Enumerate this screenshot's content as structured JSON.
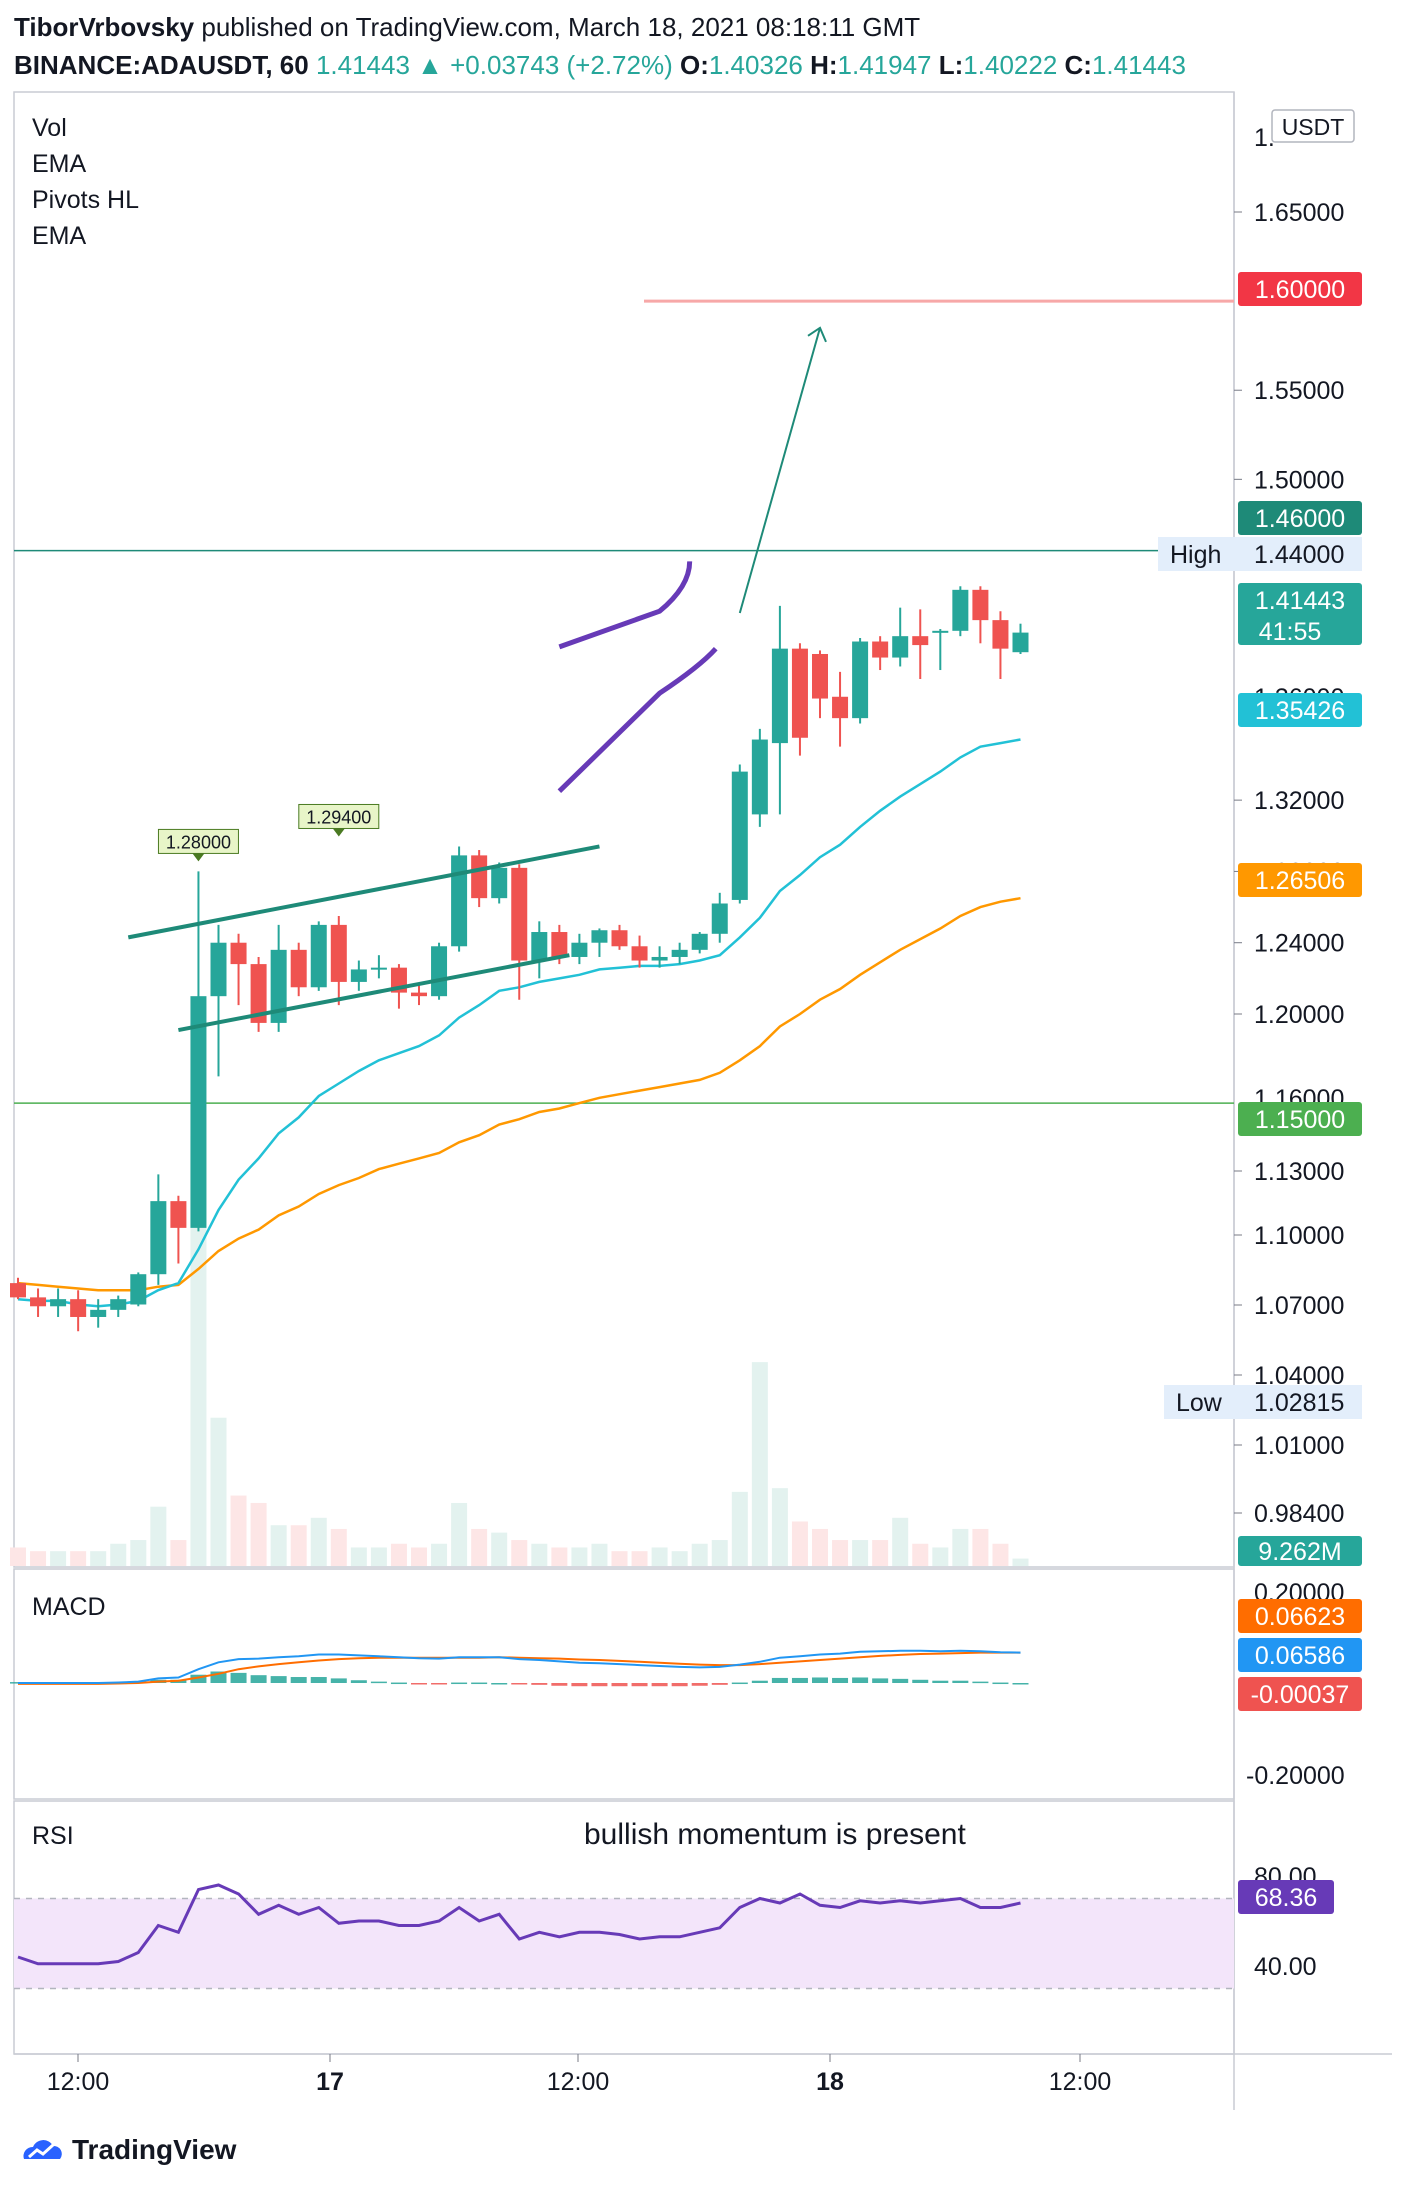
{
  "header": {
    "author": "TiborVrbovsky",
    "published": "published on TradingView.com, March 18, 2021 08:18:11 GMT",
    "symbol": "BINANCE:ADAUSDT, 60",
    "last": "1.41443",
    "change": "+0.03743 (+2.72%)",
    "o": "1.40326",
    "h": "1.41947",
    "l": "1.40222",
    "c": "1.41443",
    "o_label": "O:",
    "h_label": "H:",
    "l_label": "L:",
    "c_label": "C:",
    "up_arrow_icon": "triangle-up-icon"
  },
  "indicators": [
    "Vol",
    "EMA",
    "Pivots HL",
    "EMA"
  ],
  "currency": "USDT",
  "price_axis": {
    "ticks": [
      "1.65000",
      "1.55000",
      "1.50000",
      "1.32000",
      "1.28000",
      "1.24000",
      "1.20000",
      "1.13000",
      "1.10000",
      "1.07000",
      "1.04000",
      "1.01000",
      "0.98400"
    ],
    "partial_ticks": [
      "1.",
      "1.36000",
      "1.16000"
    ]
  },
  "price_badges": [
    {
      "text": "1.60000",
      "color": "#f23645"
    },
    {
      "text": "1.46000",
      "color": "#1e8a78"
    },
    {
      "text": "1.44000",
      "label": "High"
    },
    {
      "text": "1.41443",
      "sub": "41:55",
      "color": "#26a69a"
    },
    {
      "text": "1.35426",
      "color": "#22c1d6"
    },
    {
      "text": "1.26506",
      "color": "#ff9800"
    },
    {
      "text": "1.15000",
      "color": "#4caf50"
    },
    {
      "text": "1.02815",
      "label": "Low"
    },
    {
      "text": "9.262M",
      "color": "#26a69a"
    }
  ],
  "pivots": [
    "1.28000",
    "1.29400"
  ],
  "macd": {
    "label": "MACD",
    "ticks": [
      "0.20000",
      "-0.20000"
    ],
    "badges": [
      {
        "text": "0.06623",
        "color": "#ff6d00"
      },
      {
        "text": "0.06586",
        "color": "#2196f3"
      },
      {
        "text": "-0.00037",
        "color": "#ef5350"
      }
    ]
  },
  "rsi": {
    "label": "RSI",
    "annotation": "bullish momentum is present",
    "ticks": [
      "80.00",
      "40.00"
    ],
    "value": "68.36"
  },
  "time_axis": [
    "12:00",
    "17",
    "12:00",
    "18",
    "12:00"
  ],
  "footer": {
    "brand": "TradingView",
    "logo_icon": "tradingview-logo-icon"
  },
  "chart_data": {
    "type": "candlestick",
    "symbol": "BINANCE:ADAUSDT",
    "interval": "60",
    "candles": [
      {
        "o": 1.049,
        "h": 1.052,
        "l": 1.04,
        "c": 1.041
      },
      {
        "o": 1.041,
        "h": 1.046,
        "l": 1.03,
        "c": 1.036
      },
      {
        "o": 1.036,
        "h": 1.046,
        "l": 1.03,
        "c": 1.04
      },
      {
        "o": 1.04,
        "h": 1.045,
        "l": 1.022,
        "c": 1.03
      },
      {
        "o": 1.03,
        "h": 1.04,
        "l": 1.024,
        "c": 1.034
      },
      {
        "o": 1.034,
        "h": 1.042,
        "l": 1.03,
        "c": 1.04
      },
      {
        "o": 1.037,
        "h": 1.055,
        "l": 1.036,
        "c": 1.054
      },
      {
        "o": 1.054,
        "h": 1.11,
        "l": 1.048,
        "c": 1.095
      },
      {
        "o": 1.095,
        "h": 1.098,
        "l": 1.06,
        "c": 1.08
      },
      {
        "o": 1.08,
        "h": 1.28,
        "l": 1.078,
        "c": 1.21
      },
      {
        "o": 1.21,
        "h": 1.25,
        "l": 1.165,
        "c": 1.24
      },
      {
        "o": 1.24,
        "h": 1.245,
        "l": 1.205,
        "c": 1.228
      },
      {
        "o": 1.228,
        "h": 1.232,
        "l": 1.19,
        "c": 1.195
      },
      {
        "o": 1.195,
        "h": 1.25,
        "l": 1.19,
        "c": 1.236
      },
      {
        "o": 1.236,
        "h": 1.24,
        "l": 1.21,
        "c": 1.215
      },
      {
        "o": 1.215,
        "h": 1.252,
        "l": 1.213,
        "c": 1.25
      },
      {
        "o": 1.25,
        "h": 1.255,
        "l": 1.205,
        "c": 1.218
      },
      {
        "o": 1.218,
        "h": 1.23,
        "l": 1.213,
        "c": 1.225
      },
      {
        "o": 1.225,
        "h": 1.233,
        "l": 1.22,
        "c": 1.226
      },
      {
        "o": 1.226,
        "h": 1.228,
        "l": 1.203,
        "c": 1.212
      },
      {
        "o": 1.212,
        "h": 1.216,
        "l": 1.205,
        "c": 1.21
      },
      {
        "o": 1.21,
        "h": 1.24,
        "l": 1.208,
        "c": 1.238
      },
      {
        "o": 1.238,
        "h": 1.294,
        "l": 1.235,
        "c": 1.289
      },
      {
        "o": 1.289,
        "h": 1.292,
        "l": 1.26,
        "c": 1.265
      },
      {
        "o": 1.265,
        "h": 1.285,
        "l": 1.262,
        "c": 1.282
      },
      {
        "o": 1.282,
        "h": 1.284,
        "l": 1.208,
        "c": 1.23
      },
      {
        "o": 1.23,
        "h": 1.252,
        "l": 1.22,
        "c": 1.246
      },
      {
        "o": 1.246,
        "h": 1.25,
        "l": 1.228,
        "c": 1.232
      },
      {
        "o": 1.232,
        "h": 1.245,
        "l": 1.228,
        "c": 1.24
      },
      {
        "o": 1.24,
        "h": 1.248,
        "l": 1.232,
        "c": 1.247
      },
      {
        "o": 1.247,
        "h": 1.25,
        "l": 1.236,
        "c": 1.238
      },
      {
        "o": 1.238,
        "h": 1.244,
        "l": 1.226,
        "c": 1.23
      },
      {
        "o": 1.23,
        "h": 1.238,
        "l": 1.226,
        "c": 1.232
      },
      {
        "o": 1.232,
        "h": 1.24,
        "l": 1.228,
        "c": 1.236
      },
      {
        "o": 1.236,
        "h": 1.246,
        "l": 1.234,
        "c": 1.245
      },
      {
        "o": 1.245,
        "h": 1.268,
        "l": 1.24,
        "c": 1.262
      },
      {
        "o": 1.264,
        "h": 1.34,
        "l": 1.262,
        "c": 1.336
      },
      {
        "o": 1.312,
        "h": 1.36,
        "l": 1.305,
        "c": 1.354
      },
      {
        "o": 1.352,
        "h": 1.429,
        "l": 1.312,
        "c": 1.405
      },
      {
        "o": 1.405,
        "h": 1.408,
        "l": 1.345,
        "c": 1.355
      },
      {
        "o": 1.402,
        "h": 1.404,
        "l": 1.366,
        "c": 1.377
      },
      {
        "o": 1.378,
        "h": 1.392,
        "l": 1.35,
        "c": 1.366
      },
      {
        "o": 1.366,
        "h": 1.411,
        "l": 1.363,
        "c": 1.409
      },
      {
        "o": 1.409,
        "h": 1.412,
        "l": 1.393,
        "c": 1.4
      },
      {
        "o": 1.4,
        "h": 1.428,
        "l": 1.395,
        "c": 1.412
      },
      {
        "o": 1.412,
        "h": 1.427,
        "l": 1.388,
        "c": 1.407
      },
      {
        "o": 1.414,
        "h": 1.416,
        "l": 1.393,
        "c": 1.415
      },
      {
        "o": 1.415,
        "h": 1.44,
        "l": 1.412,
        "c": 1.438
      },
      {
        "o": 1.438,
        "h": 1.44,
        "l": 1.408,
        "c": 1.421
      },
      {
        "o": 1.421,
        "h": 1.426,
        "l": 1.388,
        "c": 1.405
      },
      {
        "o": 1.403,
        "h": 1.419,
        "l": 1.402,
        "c": 1.414
      }
    ],
    "volume": [
      0.5,
      0.4,
      0.4,
      0.4,
      0.4,
      0.6,
      0.7,
      1.6,
      0.7,
      11.6,
      4.0,
      1.9,
      1.7,
      1.1,
      1.1,
      1.3,
      1.0,
      0.5,
      0.5,
      0.6,
      0.5,
      0.6,
      1.7,
      1.0,
      0.9,
      0.7,
      0.6,
      0.5,
      0.5,
      0.6,
      0.4,
      0.4,
      0.5,
      0.4,
      0.6,
      0.7,
      2.0,
      5.5,
      2.1,
      1.2,
      1.0,
      0.7,
      0.7,
      0.7,
      1.3,
      0.6,
      0.5,
      1.0,
      1.0,
      0.6,
      0.2
    ],
    "ema_fast": [
      1.04,
      1.039,
      1.039,
      1.037,
      1.036,
      1.037,
      1.039,
      1.045,
      1.049,
      1.068,
      1.09,
      1.107,
      1.119,
      1.133,
      1.142,
      1.154,
      1.161,
      1.168,
      1.174,
      1.178,
      1.182,
      1.188,
      1.198,
      1.205,
      1.213,
      1.215,
      1.218,
      1.22,
      1.222,
      1.225,
      1.226,
      1.227,
      1.227,
      1.228,
      1.23,
      1.233,
      1.243,
      1.254,
      1.269,
      1.278,
      1.288,
      1.295,
      1.305,
      1.314,
      1.322,
      1.329,
      1.336,
      1.344,
      1.35,
      1.352,
      1.354
    ],
    "ema_slow": [
      1.049,
      1.048,
      1.047,
      1.046,
      1.045,
      1.045,
      1.045,
      1.047,
      1.048,
      1.057,
      1.067,
      1.074,
      1.079,
      1.087,
      1.092,
      1.099,
      1.104,
      1.108,
      1.113,
      1.116,
      1.119,
      1.122,
      1.128,
      1.132,
      1.138,
      1.141,
      1.145,
      1.147,
      1.15,
      1.153,
      1.155,
      1.157,
      1.159,
      1.161,
      1.163,
      1.167,
      1.174,
      1.182,
      1.193,
      1.2,
      1.208,
      1.214,
      1.222,
      1.229,
      1.236,
      1.242,
      1.248,
      1.255,
      1.26,
      1.263,
      1.265
    ],
    "levels": [
      1.6,
      1.46,
      1.15
    ],
    "macd_line": [
      0.0,
      0.0,
      0.0,
      0.0,
      0.0,
      0.001,
      0.003,
      0.01,
      0.012,
      0.03,
      0.045,
      0.052,
      0.053,
      0.056,
      0.058,
      0.062,
      0.062,
      0.06,
      0.058,
      0.056,
      0.054,
      0.053,
      0.056,
      0.056,
      0.056,
      0.052,
      0.05,
      0.047,
      0.044,
      0.043,
      0.041,
      0.039,
      0.037,
      0.035,
      0.034,
      0.035,
      0.04,
      0.046,
      0.055,
      0.058,
      0.062,
      0.064,
      0.068,
      0.069,
      0.07,
      0.07,
      0.069,
      0.07,
      0.069,
      0.067,
      0.066
    ],
    "macd_signal": [
      -0.002,
      -0.002,
      -0.002,
      -0.002,
      -0.002,
      -0.001,
      0.0,
      0.003,
      0.005,
      0.012,
      0.02,
      0.03,
      0.036,
      0.041,
      0.045,
      0.049,
      0.052,
      0.054,
      0.055,
      0.055,
      0.055,
      0.055,
      0.055,
      0.055,
      0.056,
      0.055,
      0.054,
      0.053,
      0.051,
      0.05,
      0.048,
      0.046,
      0.044,
      0.042,
      0.04,
      0.039,
      0.039,
      0.041,
      0.044,
      0.047,
      0.05,
      0.053,
      0.056,
      0.059,
      0.061,
      0.063,
      0.064,
      0.065,
      0.066,
      0.066,
      0.066
    ],
    "rsi": [
      44,
      41,
      41,
      41,
      41,
      42,
      46,
      58,
      55,
      74,
      76,
      72,
      63,
      67,
      63,
      66,
      59,
      60,
      60,
      58,
      58,
      60,
      66,
      60,
      63,
      52,
      55,
      53,
      55,
      55,
      54,
      52,
      53,
      53,
      55,
      57,
      66,
      70,
      68,
      72,
      67,
      66,
      69,
      68,
      69,
      68,
      69,
      70,
      66,
      66,
      68
    ]
  }
}
